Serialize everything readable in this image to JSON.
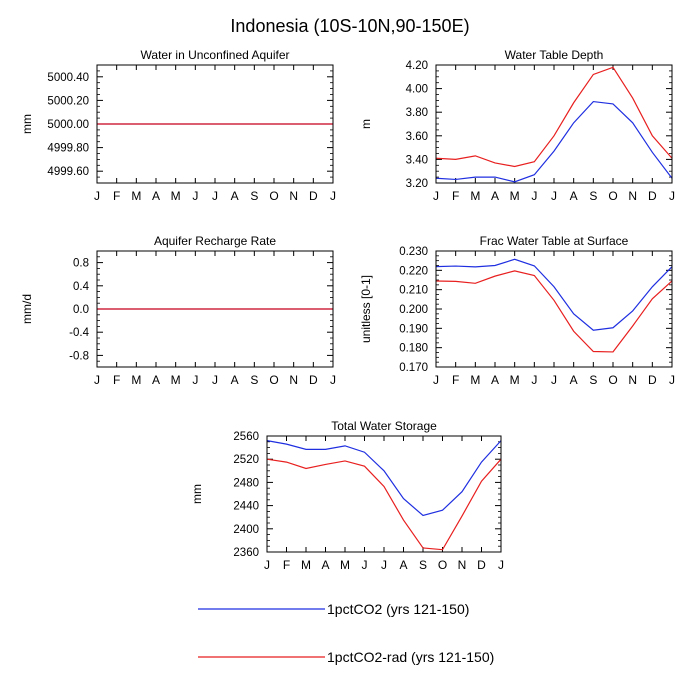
{
  "page_title": "Indonesia (10S-10N,90-150E)",
  "legend": {
    "position": "bottom",
    "items": [
      {
        "label": "1pctCO2 (yrs 121-150)",
        "color": "#1f2fe0"
      },
      {
        "label": "1pctCO2-rad (yrs 121-150)",
        "color": "#e81f1f"
      }
    ]
  },
  "chart_data": [
    {
      "type": "line",
      "title": "Water in Unconfined Aquifer",
      "ylabel": "mm",
      "categories": [
        "J",
        "F",
        "M",
        "A",
        "M",
        "J",
        "J",
        "A",
        "S",
        "O",
        "N",
        "D",
        "J"
      ],
      "ylim": [
        4999.5,
        5000.5
      ],
      "yticks": [
        4999.6,
        4999.8,
        5000.0,
        5000.2,
        5000.4
      ],
      "ytick_labels": [
        "4999.60",
        "4999.80",
        "5000.00",
        "5000.20",
        "5000.40"
      ],
      "series": [
        {
          "name": "1pctCO2 (yrs 121-150)",
          "color": "#1f2fe0",
          "values": [
            5000,
            5000,
            5000,
            5000,
            5000,
            5000,
            5000,
            5000,
            5000,
            5000,
            5000,
            5000,
            5000
          ]
        },
        {
          "name": "1pctCO2-rad (yrs 121-150)",
          "color": "#e81f1f",
          "values": [
            5000,
            5000,
            5000,
            5000,
            5000,
            5000,
            5000,
            5000,
            5000,
            5000,
            5000,
            5000,
            5000
          ]
        }
      ]
    },
    {
      "type": "line",
      "title": "Water Table Depth",
      "ylabel": "m",
      "categories": [
        "J",
        "F",
        "M",
        "A",
        "M",
        "J",
        "J",
        "A",
        "S",
        "O",
        "N",
        "D",
        "J"
      ],
      "ylim": [
        3.2,
        4.2
      ],
      "yticks": [
        3.2,
        3.4,
        3.6,
        3.8,
        4.0,
        4.2
      ],
      "ytick_labels": [
        "3.20",
        "3.40",
        "3.60",
        "3.80",
        "4.00",
        "4.20"
      ],
      "series": [
        {
          "name": "1pctCO2 (yrs 121-150)",
          "color": "#1f2fe0",
          "values": [
            3.24,
            3.23,
            3.25,
            3.25,
            3.21,
            3.27,
            3.47,
            3.71,
            3.89,
            3.87,
            3.71,
            3.46,
            3.24
          ]
        },
        {
          "name": "1pctCO2-rad (yrs 121-150)",
          "color": "#e81f1f",
          "values": [
            3.41,
            3.4,
            3.43,
            3.37,
            3.34,
            3.38,
            3.6,
            3.88,
            4.12,
            4.18,
            3.92,
            3.6,
            3.41
          ]
        }
      ]
    },
    {
      "type": "line",
      "title": "Aquifer Recharge Rate",
      "ylabel": "mm/d",
      "categories": [
        "J",
        "F",
        "M",
        "A",
        "M",
        "J",
        "J",
        "A",
        "S",
        "O",
        "N",
        "D",
        "J"
      ],
      "ylim": [
        -1.0,
        1.0
      ],
      "yticks": [
        -0.8,
        -0.4,
        0.0,
        0.4,
        0.8
      ],
      "ytick_labels": [
        "-0.8",
        "-0.4",
        "0.0",
        "0.4",
        "0.8"
      ],
      "series": [
        {
          "name": "1pctCO2 (yrs 121-150)",
          "color": "#1f2fe0",
          "values": [
            0,
            0,
            0,
            0,
            0,
            0,
            0,
            0,
            0,
            0,
            0,
            0,
            0
          ]
        },
        {
          "name": "1pctCO2-rad (yrs 121-150)",
          "color": "#e81f1f",
          "values": [
            0,
            0,
            0,
            0,
            0,
            0,
            0,
            0,
            0,
            0,
            0,
            0,
            0
          ]
        }
      ]
    },
    {
      "type": "line",
      "title": "Frac Water Table at Surface",
      "ylabel": "unitless [0-1]",
      "categories": [
        "J",
        "F",
        "M",
        "A",
        "M",
        "J",
        "J",
        "A",
        "S",
        "O",
        "N",
        "D",
        "J"
      ],
      "ylim": [
        0.17,
        0.23
      ],
      "yticks": [
        0.17,
        0.18,
        0.19,
        0.2,
        0.21,
        0.22,
        0.23
      ],
      "ytick_labels": [
        "0.170",
        "0.180",
        "0.190",
        "0.200",
        "0.210",
        "0.220",
        "0.230"
      ],
      "series": [
        {
          "name": "1pctCO2 (yrs 121-150)",
          "color": "#1f2fe0",
          "values": [
            0.2219,
            0.2222,
            0.2218,
            0.2225,
            0.2257,
            0.2223,
            0.2115,
            0.1975,
            0.189,
            0.1903,
            0.199,
            0.2115,
            0.2219
          ]
        },
        {
          "name": "1pctCO2-rad (yrs 121-150)",
          "color": "#e81f1f",
          "values": [
            0.2145,
            0.2143,
            0.2133,
            0.217,
            0.2197,
            0.2173,
            0.2045,
            0.1885,
            0.178,
            0.1778,
            0.1912,
            0.2053,
            0.2145
          ]
        }
      ]
    },
    {
      "type": "line",
      "title": "Total Water Storage",
      "ylabel": "mm",
      "categories": [
        "J",
        "F",
        "M",
        "A",
        "M",
        "J",
        "J",
        "A",
        "S",
        "O",
        "N",
        "D",
        "J"
      ],
      "ylim": [
        2360,
        2560
      ],
      "yticks": [
        2360,
        2400,
        2440,
        2480,
        2520,
        2560
      ],
      "ytick_labels": [
        "2360",
        "2400",
        "2440",
        "2480",
        "2520",
        "2560"
      ],
      "series": [
        {
          "name": "1pctCO2 (yrs 121-150)",
          "color": "#1f2fe0",
          "values": [
            2552,
            2546,
            2537,
            2537,
            2543,
            2532,
            2500,
            2452,
            2423,
            2432,
            2464,
            2515,
            2552
          ]
        },
        {
          "name": "1pctCO2-rad (yrs 121-150)",
          "color": "#e81f1f",
          "values": [
            2520,
            2515,
            2504,
            2511,
            2517,
            2508,
            2473,
            2415,
            2367,
            2364,
            2422,
            2482,
            2520
          ]
        }
      ]
    }
  ]
}
